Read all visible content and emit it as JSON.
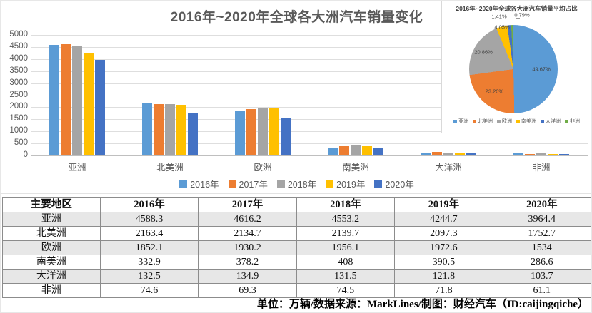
{
  "chart_data": [
    {
      "type": "bar",
      "title": "2016年~2020年全球各大洲汽车销量变化",
      "categories": [
        "亚洲",
        "北美洲",
        "欧洲",
        "南美洲",
        "大洋洲",
        "非洲"
      ],
      "series": [
        {
          "name": "2016年",
          "color": "#5B9BD5",
          "values": [
            4588.3,
            2163.4,
            1852.1,
            332.9,
            132.5,
            74.6
          ]
        },
        {
          "name": "2017年",
          "color": "#ED7D31",
          "values": [
            4616.2,
            2134.7,
            1930.2,
            378.2,
            134.9,
            69.3
          ]
        },
        {
          "name": "2018年",
          "color": "#A5A5A5",
          "values": [
            4553.2,
            2139.7,
            1956.1,
            408,
            131.5,
            74.5
          ]
        },
        {
          "name": "2019年",
          "color": "#FFC000",
          "values": [
            4244.7,
            2097.3,
            1972.6,
            390.5,
            121.8,
            71.8
          ]
        },
        {
          "name": "2020年",
          "color": "#4472C4",
          "values": [
            3964.4,
            1752.7,
            1534,
            286.6,
            103.7,
            61.1
          ]
        }
      ],
      "ylim": [
        0,
        5000
      ],
      "y_ticks": [
        5000,
        4500,
        4000,
        3500,
        3000,
        2500,
        2000,
        1500,
        1000,
        500,
        0
      ],
      "grid": true,
      "legend_position": "bottom",
      "unit": "万辆"
    },
    {
      "type": "pie",
      "title": "2016年~2020年全球各大洲汽车销量平均占比",
      "labels": [
        "亚洲",
        "北美洲",
        "欧洲",
        "南美洲",
        "大洋洲",
        "非洲"
      ],
      "values": [
        49.67,
        23.2,
        20.86,
        4.05,
        1.41,
        0.79
      ],
      "value_labels": [
        "49.67%",
        "23.20%",
        "20.86%",
        "4.05%",
        "1.41%",
        "0.79%"
      ],
      "colors": [
        "#5B9BD5",
        "#ED7D31",
        "#A5A5A5",
        "#FFC000",
        "#4472C4",
        "#70AD47"
      ],
      "legend_position": "bottom",
      "value_format": "percent"
    },
    {
      "type": "table",
      "headers": [
        "主要地区",
        "2016年",
        "2017年",
        "2018年",
        "2019年",
        "2020年"
      ],
      "rows": [
        [
          "亚洲",
          "4588.3",
          "4616.2",
          "4553.2",
          "4244.7",
          "3964.4"
        ],
        [
          "北美洲",
          "2163.4",
          "2134.7",
          "2139.7",
          "2097.3",
          "1752.7"
        ],
        [
          "欧洲",
          "1852.1",
          "1930.2",
          "1956.1",
          "1972.6",
          "1534"
        ],
        [
          "南美洲",
          "332.9",
          "378.2",
          "408",
          "390.5",
          "286.6"
        ],
        [
          "大洋洲",
          "132.5",
          "134.9",
          "131.5",
          "121.8",
          "103.7"
        ],
        [
          "非洲",
          "74.6",
          "69.3",
          "74.5",
          "71.8",
          "61.1"
        ]
      ]
    }
  ],
  "footer": {
    "text": "单位：万辆/数据来源：MarkLines/制图：财经汽车（ID:caijingqiche）"
  }
}
